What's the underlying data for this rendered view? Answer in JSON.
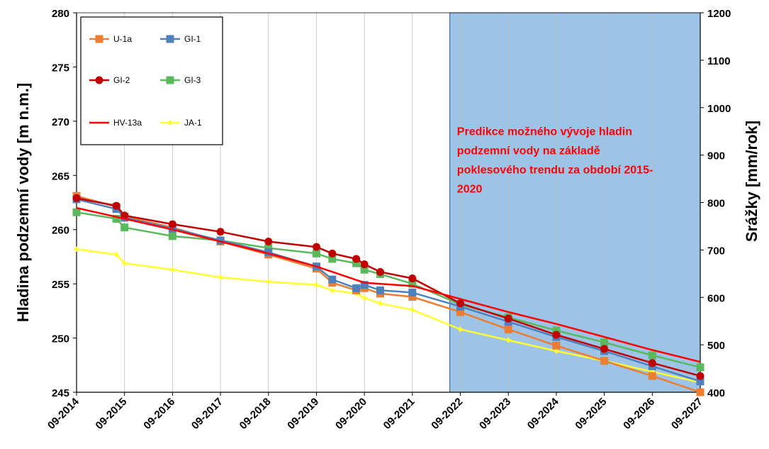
{
  "chart_data": {
    "type": "line",
    "ylabel": "Hladina podzemní vody [m n.m.]",
    "y2label": "Srážky [mm/rok]",
    "ylim": [
      245,
      280
    ],
    "yticks": [
      245,
      250,
      255,
      260,
      265,
      270,
      275,
      280
    ],
    "y2lim": [
      400,
      1200
    ],
    "y2ticks": [
      400,
      500,
      600,
      700,
      800,
      900,
      1000,
      1100,
      1200
    ],
    "xlim": [
      2014.67,
      2027.67
    ],
    "xticks": [
      {
        "value": 2014.67,
        "label": "09-2014"
      },
      {
        "value": 2015.67,
        "label": "09-2015"
      },
      {
        "value": 2016.67,
        "label": "09-2016"
      },
      {
        "value": 2017.67,
        "label": "09-2017"
      },
      {
        "value": 2018.67,
        "label": "09-2018"
      },
      {
        "value": 2019.67,
        "label": "09-2019"
      },
      {
        "value": 2020.67,
        "label": "09-2020"
      },
      {
        "value": 2021.67,
        "label": "09-2021"
      },
      {
        "value": 2022.67,
        "label": "09-2022"
      },
      {
        "value": 2023.67,
        "label": "09-2023"
      },
      {
        "value": 2024.67,
        "label": "09-2024"
      },
      {
        "value": 2025.67,
        "label": "09-2025"
      },
      {
        "value": 2026.67,
        "label": "09-2026"
      },
      {
        "value": 2027.67,
        "label": "09-2027"
      }
    ],
    "grid": "vertical",
    "legend_position": "top-left",
    "prediction_region": {
      "x_start": 2022.45,
      "x_end": 2027.67,
      "color": "#9dc3e6"
    },
    "annotation": {
      "lines": [
        "Predikce možného vývoje hladin",
        "podzemní vody na základě",
        "poklesového trendu  za období 2015-",
        "2020"
      ],
      "x": 2022.6,
      "y": 268.7,
      "color": "#ff0000"
    },
    "series": [
      {
        "name": "U-1a",
        "color": "#ed7d31",
        "marker": "square",
        "x": [
          2014.67,
          2015.5,
          2015.67,
          2016.67,
          2017.67,
          2018.67,
          2019.67,
          2020.0,
          2020.5,
          2020.67,
          2021.0,
          2021.67,
          2022.67,
          2023.67,
          2024.67,
          2025.67,
          2026.67,
          2027.67
        ],
        "y": [
          263.1,
          262.1,
          261.2,
          260.2,
          258.9,
          257.7,
          256.4,
          255.1,
          254.4,
          254.6,
          254.1,
          253.8,
          252.4,
          250.8,
          249.3,
          247.9,
          246.5,
          245.0
        ]
      },
      {
        "name": "GI-1",
        "color": "#4f81bd",
        "marker": "square",
        "x": [
          2014.67,
          2015.5,
          2015.67,
          2016.67,
          2017.67,
          2018.67,
          2019.67,
          2020.0,
          2020.5,
          2020.67,
          2021.0,
          2021.67,
          2022.67,
          2023.67,
          2024.67,
          2025.67,
          2026.67,
          2027.67
        ],
        "y": [
          262.8,
          261.9,
          261.1,
          260.1,
          259.0,
          257.9,
          256.6,
          255.4,
          254.6,
          254.9,
          254.4,
          254.2,
          252.9,
          251.5,
          250.1,
          248.8,
          247.4,
          246.0
        ]
      },
      {
        "name": "GI-2",
        "color": "#c00000",
        "marker": "circle",
        "x": [
          2014.67,
          2015.5,
          2015.67,
          2016.67,
          2017.67,
          2018.67,
          2019.67,
          2020.0,
          2020.5,
          2020.67,
          2021.0,
          2021.67,
          2022.67,
          2023.67,
          2024.67,
          2025.67,
          2026.67,
          2027.67
        ],
        "y": [
          262.9,
          262.2,
          261.3,
          260.5,
          259.8,
          258.9,
          258.4,
          257.8,
          257.3,
          256.8,
          256.1,
          255.5,
          253.2,
          251.8,
          250.3,
          249.0,
          247.7,
          246.5
        ]
      },
      {
        "name": "GI-3",
        "color": "#5cb85c",
        "marker": "square",
        "x": [
          2014.67,
          2015.5,
          2015.67,
          2016.67,
          2017.67,
          2018.67,
          2019.67,
          2020.0,
          2020.5,
          2020.67,
          2021.0,
          2021.67,
          2022.67,
          2023.67,
          2024.67,
          2025.67,
          2026.67,
          2027.67
        ],
        "y": [
          261.6,
          261.0,
          260.2,
          259.4,
          259.0,
          258.3,
          257.8,
          257.3,
          256.9,
          256.3,
          255.9,
          255.0,
          253.1,
          251.9,
          250.7,
          249.6,
          248.4,
          247.3
        ]
      },
      {
        "name": "HV-13a",
        "color": "#ff0000",
        "marker": "none",
        "x": [
          2014.67,
          2015.67,
          2016.67,
          2017.67,
          2018.67,
          2019.67,
          2020.67,
          2021.67,
          2022.67,
          2023.67,
          2024.67,
          2025.67,
          2026.67,
          2027.67
        ],
        "y": [
          262.0,
          261.0,
          260.0,
          258.9,
          257.8,
          256.6,
          255.1,
          254.8,
          253.6,
          252.4,
          251.3,
          250.1,
          248.9,
          247.8
        ]
      },
      {
        "name": "JA-1",
        "color": "#ffff33",
        "marker": "diamond",
        "x": [
          2014.67,
          2015.5,
          2015.67,
          2016.67,
          2017.67,
          2018.67,
          2019.67,
          2020.0,
          2020.5,
          2020.67,
          2021.0,
          2021.67,
          2022.67,
          2023.67,
          2024.67,
          2025.67,
          2026.67,
          2027.67
        ],
        "y": [
          258.2,
          257.7,
          256.9,
          256.3,
          255.6,
          255.2,
          254.9,
          254.4,
          254.1,
          253.7,
          253.2,
          252.6,
          250.8,
          249.8,
          248.8,
          247.9,
          246.9,
          245.9
        ]
      }
    ]
  }
}
